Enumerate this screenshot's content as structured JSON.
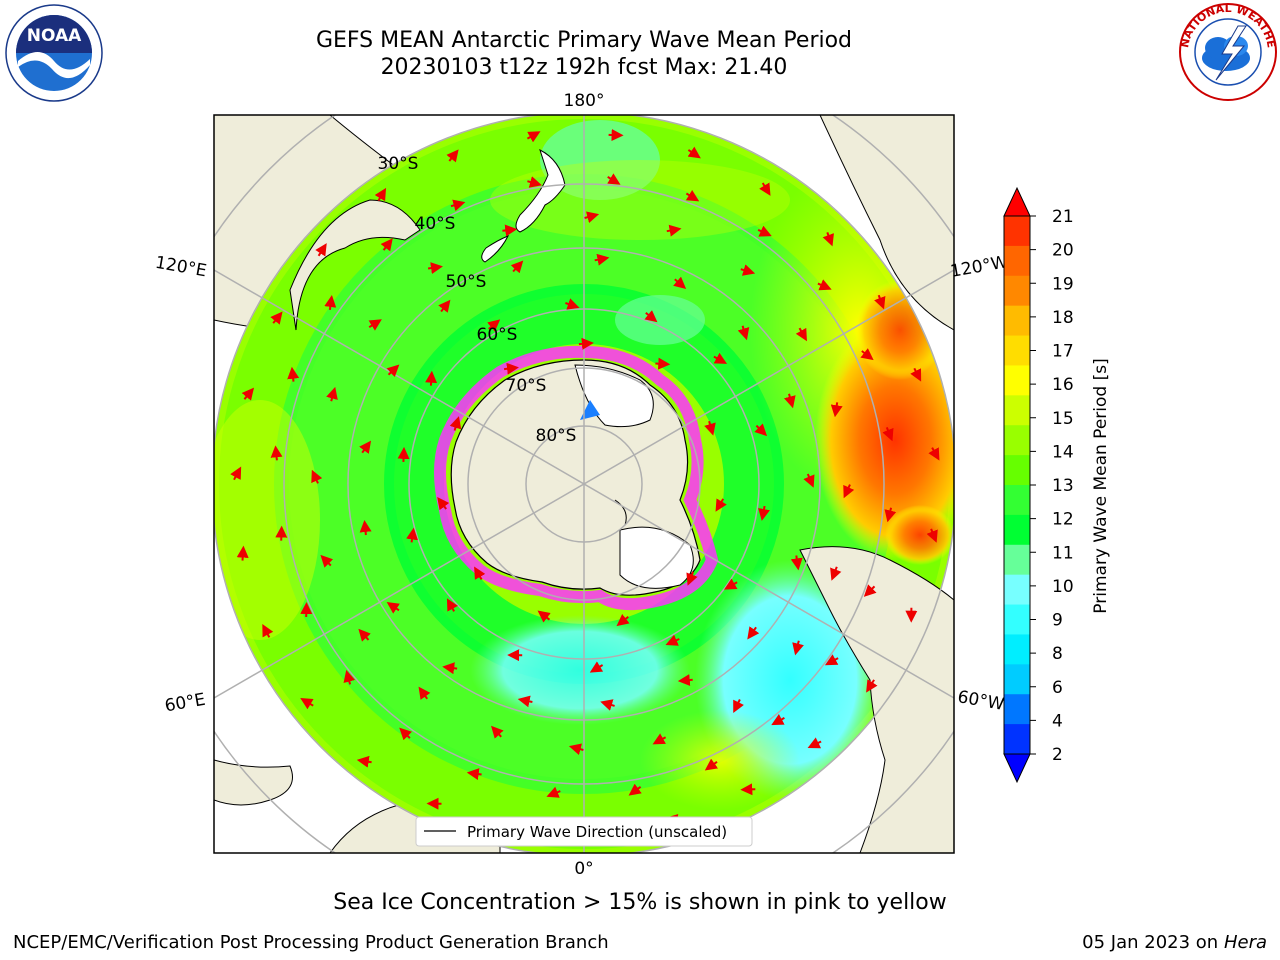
{
  "header": {
    "title": "GEFS MEAN Antarctic Primary Wave Mean Period",
    "subtitle": "20230103 t12z 192h fcst   Max: 21.40"
  },
  "map": {
    "projection": "south-polar-stereographic",
    "longitude_labels": [
      "180°",
      "0°",
      "120°E",
      "60°E",
      "120°W",
      "60°W"
    ],
    "latitude_labels": [
      "30°S",
      "40°S",
      "50°S",
      "60°S",
      "70°S",
      "80°S"
    ],
    "legend_label": "Primary Wave Direction (unscaled)",
    "colors": {
      "land": "#efedda",
      "ocean_low": "#33ffff",
      "ocean_mid": "#00ff33",
      "ocean_high": "#ff3300",
      "arrow": "#ee0000",
      "grid": "#b0b0b0"
    }
  },
  "colorbar": {
    "label": "Primary Wave Mean Period [s]",
    "ticks": [
      "2",
      "4",
      "6",
      "8",
      "9",
      "10",
      "11",
      "12",
      "13",
      "14",
      "15",
      "16",
      "17",
      "18",
      "19",
      "20",
      "21"
    ],
    "colors": [
      "#0033ff",
      "#0077ff",
      "#00ccff",
      "#00eeff",
      "#33ffff",
      "#77ffff",
      "#66ff99",
      "#00ff33",
      "#33ff33",
      "#66ff00",
      "#99ff00",
      "#ccff00",
      "#ffff00",
      "#ffdd00",
      "#ffbb00",
      "#ff8800",
      "#ff6600",
      "#ff3300"
    ],
    "max_arrow_color": "#ff0000",
    "min_arrow_color": "#0000ff"
  },
  "notes": {
    "sea_ice": "Sea Ice Concentration > 15% is shown in pink to yellow"
  },
  "footer": {
    "left": "NCEP/EMC/Verification Post Processing Product Generation Branch",
    "right_date": "05 Jan 2023 on ",
    "right_machine": "Hera"
  },
  "logos": {
    "noaa_text": "NOAA",
    "nws_text": "NATIONAL WEATHER SERVICE"
  }
}
